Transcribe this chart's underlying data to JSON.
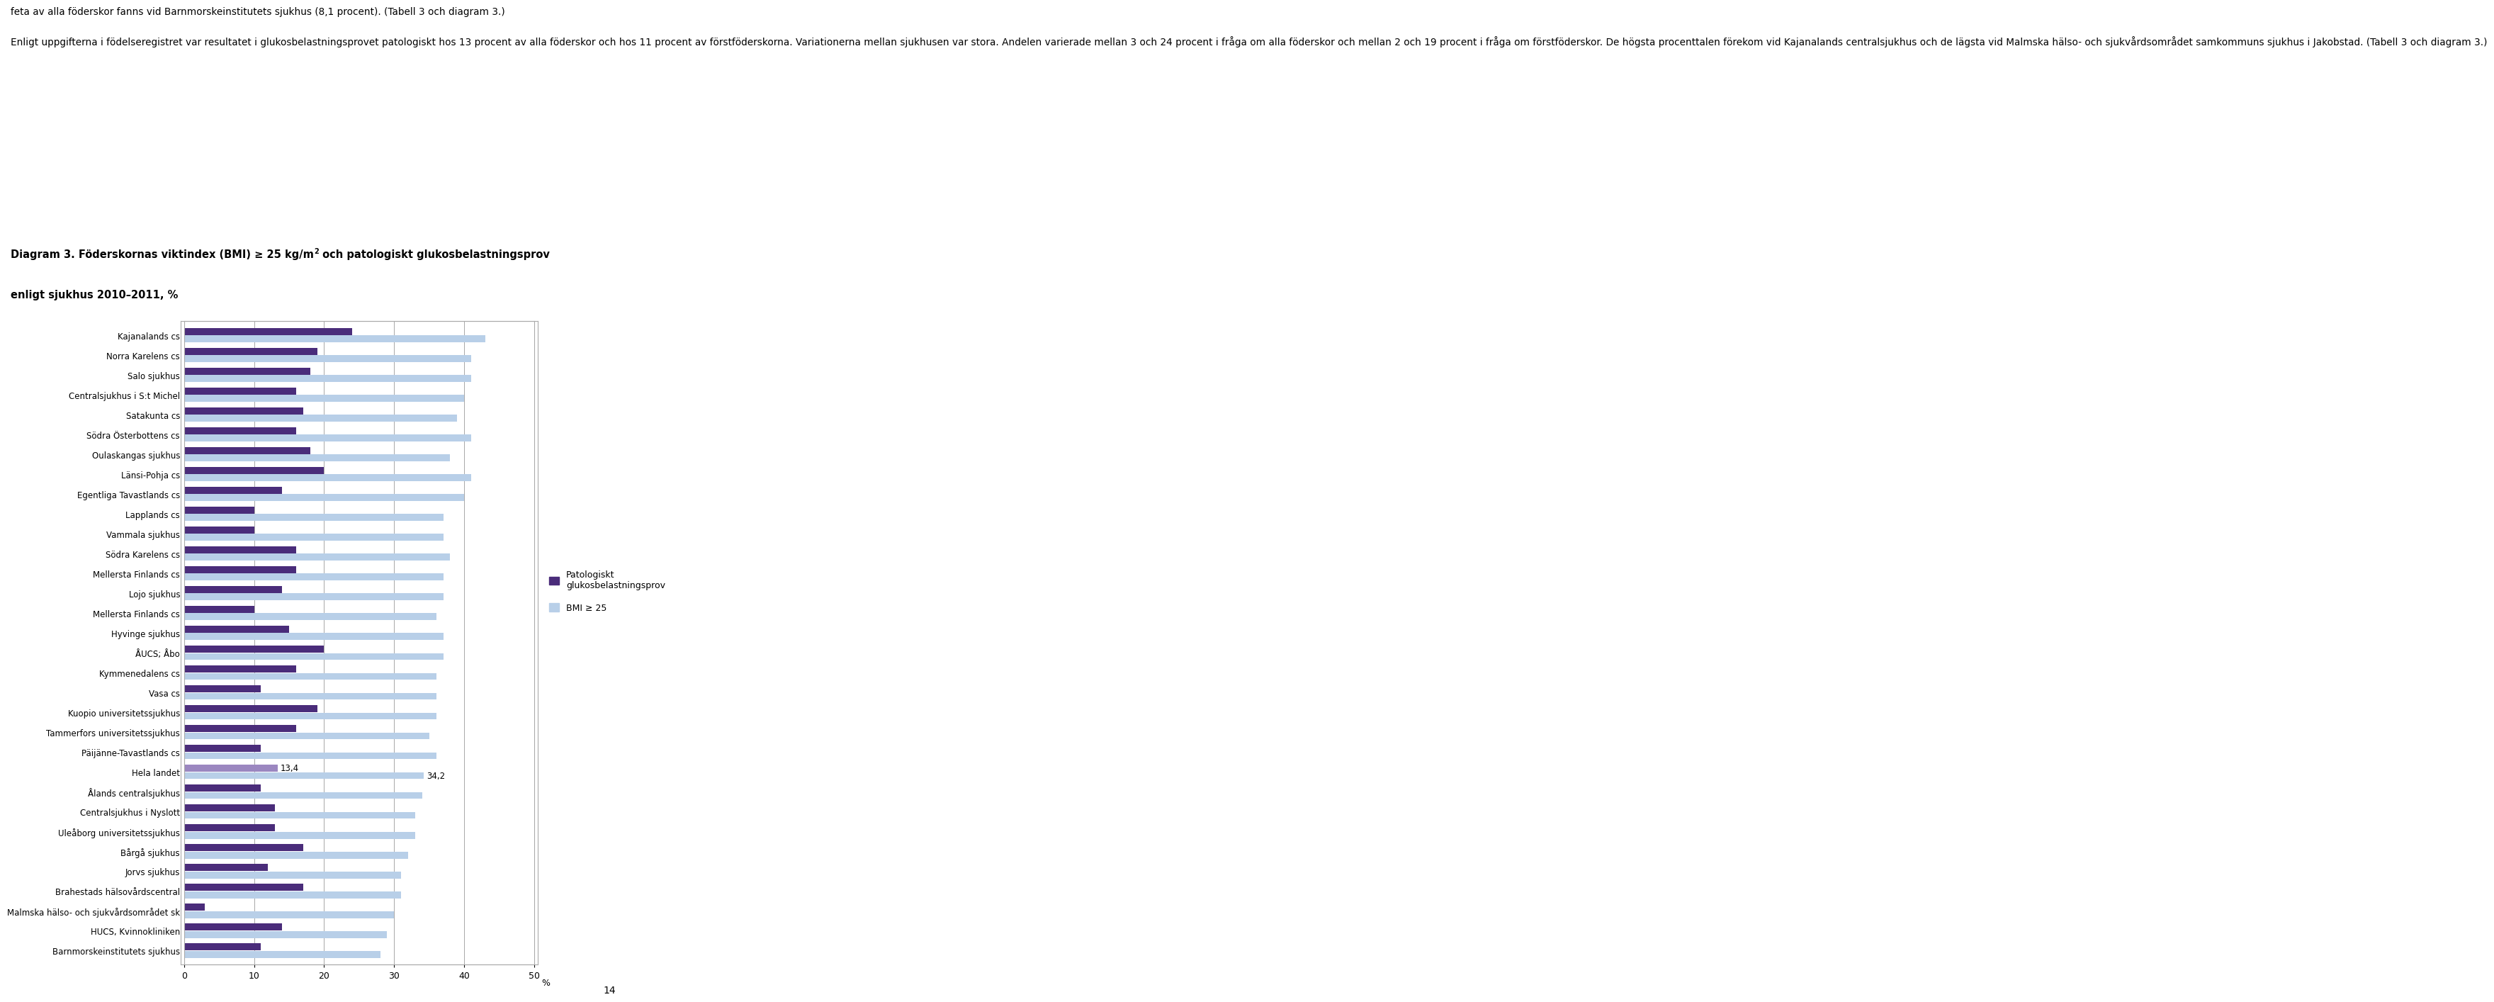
{
  "text_block": "feta av alla föderskor fanns vid Barnmorskeinstitutets sjukhus (8,1 procent). (Tabell 3 och diagram 3.)\n\nEnligt uppgifterna i födelseregistret var resultatet i glukosbelastningsprovet patologiskt hos 13 procent av alla föderskor och hos 11 procent av förstföderskorna. Variationerna mellan sjukhusen var stora. Andelen varierade mellan 3 och 24 procent i fråga om alla föderskor och mellan 2 och 19 procent i fråga om förstföderskor. De högsta procenttalen förekom vid Kajanalands centralsjukhus och de lägsta vid Malmska hälso- och sjukvårdsområdet samkommuns sjukhus i Jakobstad. (Tabell 3 och diagram 3.)",
  "title_main": "Diagram 3. Föderskornas viktindex (BMI) ≥ 25 kg/m",
  "title_super": "2",
  "title_rest": " och patologiskt glukosbelastningsprov",
  "title_line2": "enligt sjukhus 2010–2011, %",
  "hospitals": [
    "Kajanalands cs",
    "Norra Karelens cs",
    "Salo sjukhus",
    "Centralsjukhus i S:t Michel",
    "Satakunta cs",
    "Södra Österbottens cs",
    "Oulaskangas sjukhus",
    "Länsi-Pohja cs",
    "Egentliga Tavastlands cs",
    "Lapplands cs",
    "Vammala sjukhus",
    "Södra Karelens cs",
    "Mellersta Finlands cs",
    "Lojo sjukhus",
    "Mellersta Finlands cs",
    "Hyvinge sjukhus",
    "ÅUCS; Åbo",
    "Kymmenedalens cs",
    "Vasa cs",
    "Kuopio universitetssjukhus",
    "Tammerfors universitetssjukhus",
    "Päijänne-Tavastlands cs",
    "Hela landet",
    "Ålands centralsjukhus",
    "Centralsjukhus i Nyslott",
    "Uleåborg universitetssjukhus",
    "Bårgå sjukhus",
    "Jorvs sjukhus",
    "Brahestads hälsovårdscentral",
    "Malmska hälso- och sjukvårdsområdet sk",
    "HUCS, Kvinnokliniken",
    "Barnmorskeinstitutets sjukhus"
  ],
  "bmi_values": [
    43,
    41,
    41,
    40,
    39,
    41,
    38,
    41,
    40,
    37,
    37,
    38,
    37,
    37,
    36,
    37,
    37,
    36,
    36,
    36,
    35,
    36,
    34.2,
    34,
    33,
    33,
    32,
    31,
    31,
    30,
    29,
    28
  ],
  "patho_values": [
    24,
    19,
    18,
    16,
    17,
    16,
    18,
    20,
    14,
    10,
    10,
    16,
    16,
    14,
    10,
    15,
    20,
    16,
    11,
    19,
    16,
    11,
    13.4,
    11,
    13,
    13,
    17,
    12,
    17,
    3,
    14,
    11
  ],
  "hela_landet_index": 22,
  "color_patho": "#4a2c7a",
  "color_bmi": "#b8cfe8",
  "color_hela_patho": "#9b87c0",
  "legend_patho": "Patologiskt\nglukosbelastningsprov",
  "legend_bmi": "BMI ≥ 25",
  "xlim": [
    0,
    50
  ],
  "xticks": [
    0,
    10,
    20,
    30,
    40,
    50
  ],
  "xlabel": "%",
  "page_number": "14",
  "grid_color": "#999999",
  "box_color": "#aaaaaa"
}
